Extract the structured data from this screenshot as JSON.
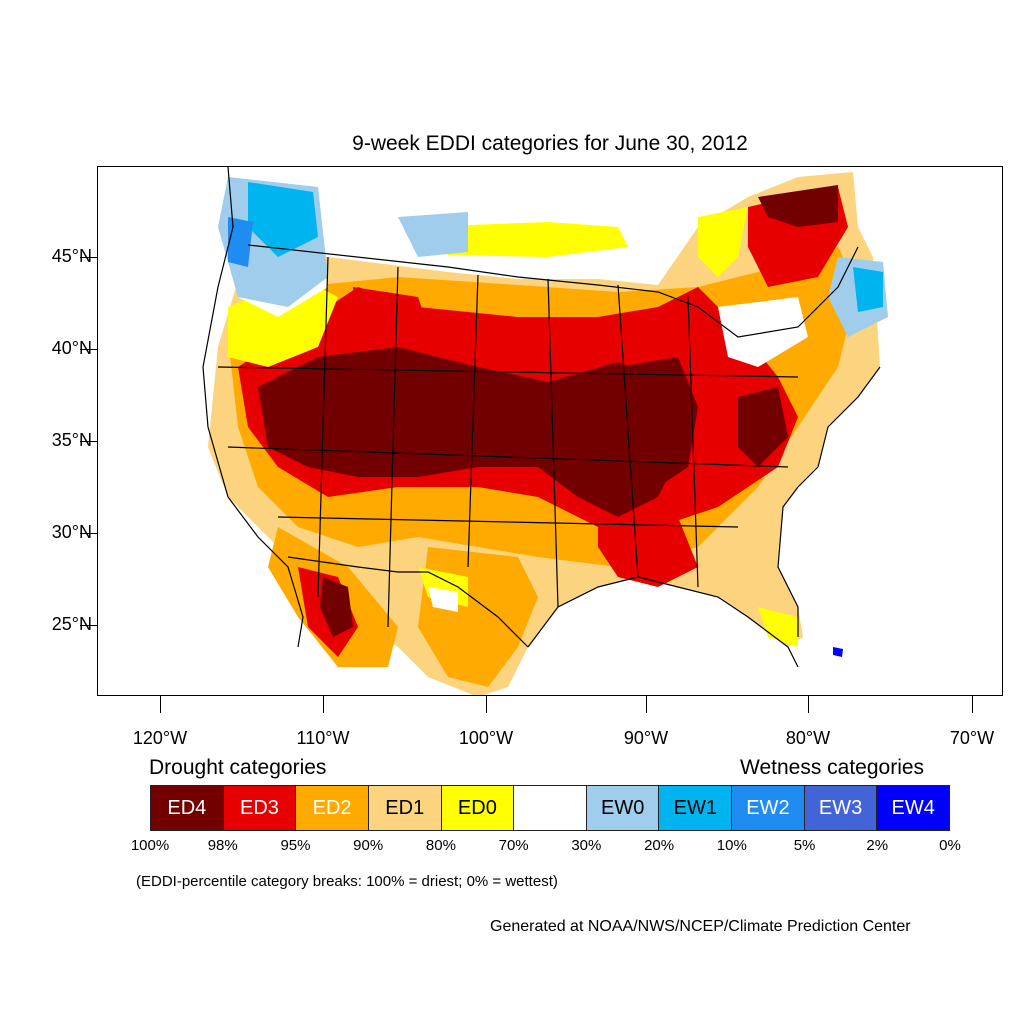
{
  "title": "9-week EDDI categories for June 30, 2012",
  "axes": {
    "lat_ticks": [
      "45°N",
      "40°N",
      "35°N",
      "30°N",
      "25°N"
    ],
    "lon_ticks": [
      "120°W",
      "110°W",
      "100°W",
      "90°W",
      "80°W",
      "70°W"
    ]
  },
  "legend": {
    "drought_title": "Drought categories",
    "wetness_title": "Wetness categories",
    "categories": [
      {
        "label": "ED4",
        "color": "#730000",
        "text_color": "#ffffff"
      },
      {
        "label": "ED3",
        "color": "#e60000",
        "text_color": "#ffffff"
      },
      {
        "label": "ED2",
        "color": "#ffaa00",
        "text_color": "#ffffff"
      },
      {
        "label": "ED1",
        "color": "#fcd37f",
        "text_color": "#000000"
      },
      {
        "label": "ED0",
        "color": "#ffff00",
        "text_color": "#000000"
      },
      {
        "label": "",
        "color": "#ffffff",
        "text_color": "#000000"
      },
      {
        "label": "EW0",
        "color": "#9fcdeb",
        "text_color": "#000000"
      },
      {
        "label": "EW1",
        "color": "#00b4f0",
        "text_color": "#000000"
      },
      {
        "label": "EW2",
        "color": "#1e8cf0",
        "text_color": "#ffffff"
      },
      {
        "label": "EW3",
        "color": "#4264d7",
        "text_color": "#ffffff"
      },
      {
        "label": "EW4",
        "color": "#0000ff",
        "text_color": "#ffffff"
      }
    ],
    "breaks": [
      "100%",
      "98%",
      "95%",
      "90%",
      "80%",
      "70%",
      "30%",
      "20%",
      "10%",
      "5%",
      "2%",
      "0%"
    ]
  },
  "footnote": "(EDDI-percentile category breaks: 100% = driest; 0% = wettest)",
  "credit": "Generated at NOAA/NWS/NCEP/Climate Prediction Center"
}
